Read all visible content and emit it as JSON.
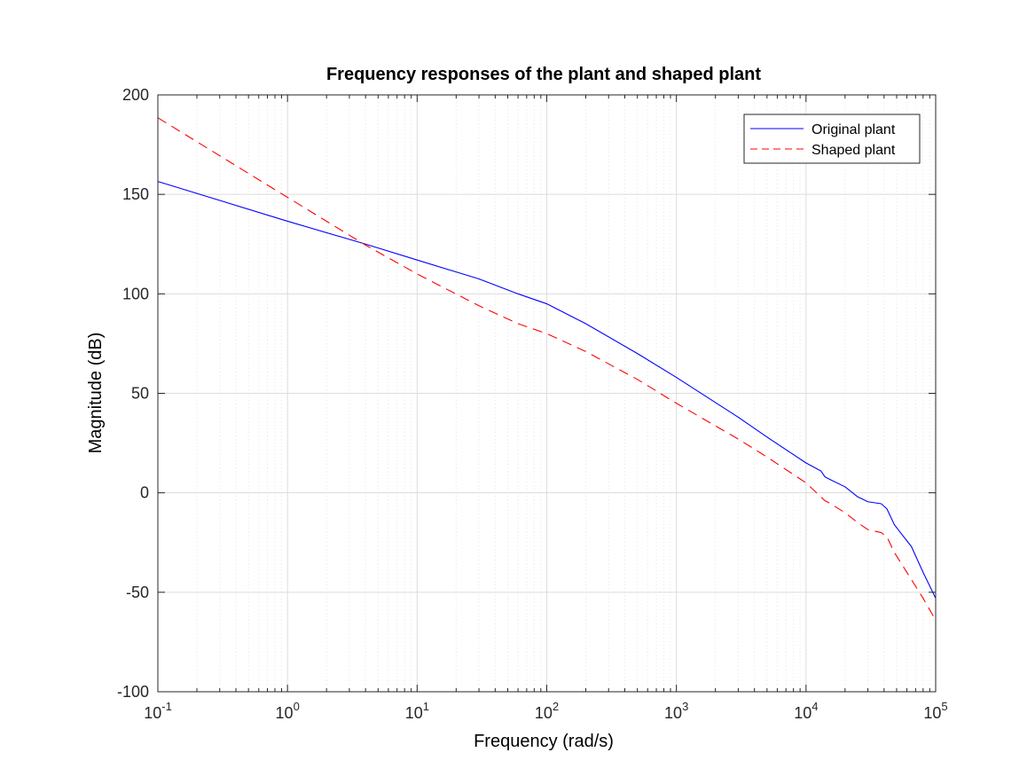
{
  "chart_data": {
    "type": "line",
    "title": "Frequency responses of the plant and shaped plant",
    "xlabel": "Frequency  (rad/s)",
    "ylabel": "Magnitude (dB)",
    "xscale": "log",
    "xlim": [
      0.1,
      100000
    ],
    "ylim": [
      -100,
      200
    ],
    "grid": true,
    "minor_grid_x": true,
    "legend_location": "top-right",
    "x_tick_labels": [
      {
        "base": "10",
        "exp": "-1"
      },
      {
        "base": "10",
        "exp": "0"
      },
      {
        "base": "10",
        "exp": "1"
      },
      {
        "base": "10",
        "exp": "2"
      },
      {
        "base": "10",
        "exp": "3"
      },
      {
        "base": "10",
        "exp": "4"
      },
      {
        "base": "10",
        "exp": "5"
      }
    ],
    "x_tick_values": [
      0.1,
      1,
      10,
      100,
      1000,
      10000,
      100000
    ],
    "y_ticks": [
      -100,
      -50,
      0,
      50,
      100,
      150,
      200
    ],
    "y_tick_labels": [
      "-100",
      "-50",
      "0",
      "50",
      "100",
      "150",
      "200"
    ],
    "series": [
      {
        "name": "Original plant",
        "color": "#0000ff",
        "style": "solid",
        "points": [
          [
            0.1,
            156.5
          ],
          [
            1,
            136.5
          ],
          [
            4,
            125
          ],
          [
            10,
            117
          ],
          [
            30,
            107.5
          ],
          [
            60,
            100
          ],
          [
            100,
            95
          ],
          [
            200,
            85
          ],
          [
            500,
            70
          ],
          [
            1000,
            58
          ],
          [
            3000,
            38
          ],
          [
            5000,
            28
          ],
          [
            10000,
            15
          ],
          [
            13000,
            11
          ],
          [
            14000,
            8
          ],
          [
            15000,
            7
          ],
          [
            20000,
            3
          ],
          [
            25000,
            -2
          ],
          [
            30000,
            -4.5
          ],
          [
            38000,
            -5.5
          ],
          [
            42000,
            -8
          ],
          [
            48000,
            -16
          ],
          [
            55000,
            -21
          ],
          [
            65000,
            -27
          ],
          [
            80000,
            -40
          ],
          [
            100000,
            -53
          ]
        ]
      },
      {
        "name": "Shaped plant",
        "color": "#ff0000",
        "style": "dashed",
        "points": [
          [
            0.1,
            188.5
          ],
          [
            1,
            148.5
          ],
          [
            4,
            124.5
          ],
          [
            10,
            110
          ],
          [
            30,
            94
          ],
          [
            60,
            85
          ],
          [
            100,
            80
          ],
          [
            200,
            71
          ],
          [
            500,
            57
          ],
          [
            1000,
            45
          ],
          [
            3000,
            27
          ],
          [
            5000,
            18
          ],
          [
            10000,
            5
          ],
          [
            13000,
            -2
          ],
          [
            14000,
            -4
          ],
          [
            15000,
            -5
          ],
          [
            20000,
            -10
          ],
          [
            25000,
            -15
          ],
          [
            30000,
            -18.5
          ],
          [
            38000,
            -20
          ],
          [
            42000,
            -22
          ],
          [
            48000,
            -30
          ],
          [
            60000,
            -40
          ],
          [
            80000,
            -53
          ],
          [
            100000,
            -64
          ]
        ]
      }
    ]
  }
}
